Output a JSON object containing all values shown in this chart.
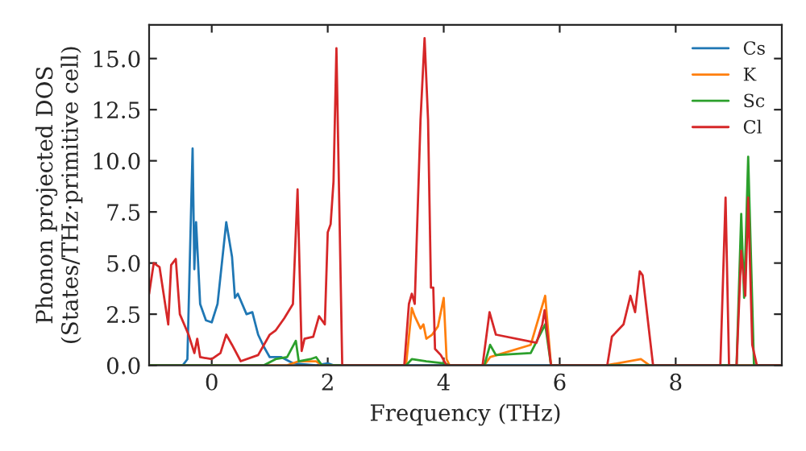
{
  "chart_data": {
    "type": "line",
    "xlabel": "Frequency (THz)",
    "ylabel": "Phonon projected DOS\n(States/THz·primitive cell)",
    "xlim": [
      -1.08,
      9.83
    ],
    "ylim": [
      0,
      16.65
    ],
    "xticks": [
      0,
      2,
      4,
      6,
      8
    ],
    "yticks": [
      {
        "value": 0,
        "label": "0.0"
      },
      {
        "value": 2.5,
        "label": "2.5"
      },
      {
        "value": 5,
        "label": "5.0"
      },
      {
        "value": 7.5,
        "label": "7.5"
      },
      {
        "value": 10,
        "label": "10.0"
      },
      {
        "value": 12.5,
        "label": "12.5"
      },
      {
        "value": 15,
        "label": "15.0"
      }
    ],
    "legend": "top right",
    "grid": false,
    "series": [
      {
        "name": "Cs",
        "color": "#1f77b4",
        "x": [
          -1.08,
          -0.5,
          -0.42,
          -0.33,
          -0.3,
          -0.27,
          -0.2,
          -0.1,
          0,
          0.1,
          0.25,
          0.35,
          0.4,
          0.45,
          0.6,
          0.7,
          0.8,
          0.9,
          1.0,
          1.2,
          1.4,
          1.6,
          1.8,
          2.0,
          2.1,
          9.83
        ],
        "values": [
          0,
          0,
          0.3,
          10.6,
          4.7,
          7.0,
          3.0,
          2.2,
          2.1,
          3.0,
          7.0,
          5.3,
          3.3,
          3.5,
          2.5,
          2.6,
          1.5,
          0.9,
          0.4,
          0.4,
          0.1,
          0.05,
          0,
          0.1,
          0,
          0
        ]
      },
      {
        "name": "K",
        "color": "#ff7f0e",
        "x": [
          -1.08,
          1.3,
          1.5,
          1.8,
          1.9,
          3.35,
          3.45,
          3.5,
          3.6,
          3.65,
          3.7,
          3.8,
          3.9,
          4.0,
          4.05,
          4.1,
          4.7,
          4.8,
          5.5,
          5.75,
          5.85,
          6.8,
          7.4,
          7.55,
          9.83
        ],
        "values": [
          0,
          0,
          0.2,
          0.2,
          0,
          0,
          2.8,
          2.4,
          1.8,
          2.0,
          1.3,
          1.5,
          1.9,
          3.3,
          0.3,
          0,
          0,
          0.4,
          1.0,
          3.4,
          0,
          0,
          0.3,
          0,
          0
        ]
      },
      {
        "name": "Sc",
        "color": "#2ca02c",
        "x": [
          -1.08,
          0.9,
          1.1,
          1.3,
          1.45,
          1.5,
          1.7,
          1.8,
          1.9,
          3.35,
          3.45,
          3.7,
          4.0,
          4.1,
          4.7,
          4.8,
          4.9,
          5.5,
          5.75,
          5.85,
          9.05,
          9.13,
          9.18,
          9.25,
          9.35,
          9.83
        ],
        "values": [
          0,
          0,
          0.3,
          0.4,
          1.2,
          0.2,
          0.3,
          0.4,
          0,
          0,
          0.3,
          0.2,
          0.1,
          0,
          0,
          1.0,
          0.5,
          0.6,
          2.0,
          0,
          0,
          7.4,
          3.3,
          10.2,
          0,
          0
        ]
      },
      {
        "name": "Cl",
        "color": "#d62728",
        "x": [
          -1.08,
          -1.0,
          -0.9,
          -0.75,
          -0.7,
          -0.62,
          -0.55,
          -0.4,
          -0.3,
          -0.25,
          -0.2,
          0,
          0.15,
          0.25,
          0.35,
          0.5,
          0.8,
          1.0,
          1.1,
          1.25,
          1.4,
          1.48,
          1.55,
          1.6,
          1.75,
          1.85,
          1.95,
          2.0,
          2.05,
          2.1,
          2.15,
          2.25,
          3.32,
          3.4,
          3.45,
          3.5,
          3.6,
          3.67,
          3.73,
          3.78,
          3.82,
          3.85,
          3.95,
          4.05,
          4.67,
          4.79,
          4.9,
          5.6,
          5.7,
          5.74,
          5.85,
          6.82,
          6.9,
          7.1,
          7.22,
          7.3,
          7.38,
          7.43,
          7.61,
          8.77,
          8.86,
          8.92,
          9.05,
          9.13,
          9.2,
          9.25,
          9.32,
          9.4,
          9.83
        ],
        "values": [
          3.5,
          5.0,
          4.8,
          2.0,
          4.9,
          5.2,
          2.5,
          1.5,
          0.6,
          1.3,
          0.4,
          0.3,
          0.6,
          1.5,
          1.0,
          0.2,
          0.5,
          1.5,
          1.7,
          2.3,
          3.0,
          8.6,
          0.7,
          1.3,
          1.4,
          2.4,
          2.0,
          6.5,
          6.9,
          9.0,
          15.5,
          0,
          0,
          3.0,
          3.5,
          3.0,
          12.0,
          16.0,
          12.0,
          3.8,
          3.8,
          0.8,
          0.5,
          0,
          0,
          2.6,
          1.5,
          1.1,
          2.0,
          2.7,
          0,
          0,
          1.4,
          2.0,
          3.4,
          2.6,
          4.6,
          4.4,
          0,
          0,
          8.2,
          0,
          0,
          5.6,
          3.4,
          8.2,
          1.0,
          0,
          0
        ]
      }
    ]
  }
}
